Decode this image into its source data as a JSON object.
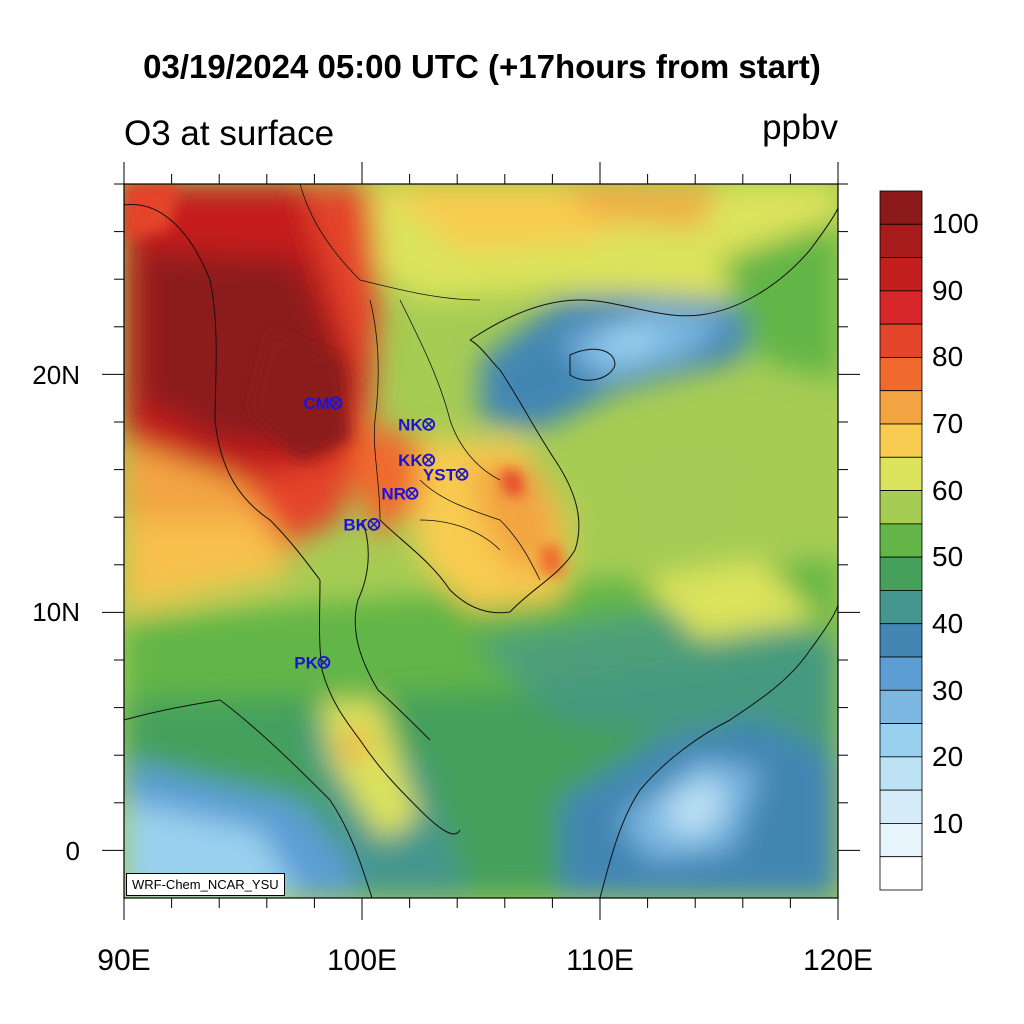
{
  "title": "03/19/2024 05:00 UTC (+17hours from start)",
  "variable_label": "O3 at surface",
  "unit_label": "ppbv",
  "credit": "WRF-Chem_NCAR_YSU",
  "lat_labels": [
    "20N",
    "10N",
    "0"
  ],
  "lon_labels": [
    "90E",
    "100E",
    "110E",
    "120E"
  ],
  "colorbar": {
    "labels": [
      "100",
      "90",
      "80",
      "70",
      "60",
      "50",
      "40",
      "30",
      "20",
      "10"
    ],
    "colors_top_to_bottom": [
      "#8c1a1a",
      "#a81c1c",
      "#c41f1f",
      "#d8272a",
      "#e4452b",
      "#f06a2e",
      "#f3a442",
      "#f8cc50",
      "#dce35c",
      "#a6cc54",
      "#62b546",
      "#45a05c",
      "#45968e",
      "#4386b4",
      "#5c9ed4",
      "#7cb8e2",
      "#99d0ee",
      "#bde2f4",
      "#d6ecf8",
      "#e8f4fb",
      "#ffffff"
    ]
  },
  "chart_data": {
    "type": "heatmap",
    "title": "03/19/2024 05:00 UTC (+17hours from start)",
    "variable": "O3 at surface",
    "units": "ppbv",
    "lon_range": [
      90,
      120
    ],
    "lat_range": [
      -2,
      28
    ],
    "colorbar_range": [
      0,
      105
    ],
    "stations": [
      {
        "name": "CM",
        "lon": 98.9,
        "lat": 18.8
      },
      {
        "name": "NK",
        "lon": 102.8,
        "lat": 17.9
      },
      {
        "name": "KK",
        "lon": 102.8,
        "lat": 16.4
      },
      {
        "name": "YST",
        "lon": 104.2,
        "lat": 15.8
      },
      {
        "name": "NR",
        "lon": 102.1,
        "lat": 15.0
      },
      {
        "name": "BK",
        "lon": 100.5,
        "lat": 13.7
      },
      {
        "name": "PK",
        "lon": 98.4,
        "lat": 7.9
      }
    ]
  }
}
